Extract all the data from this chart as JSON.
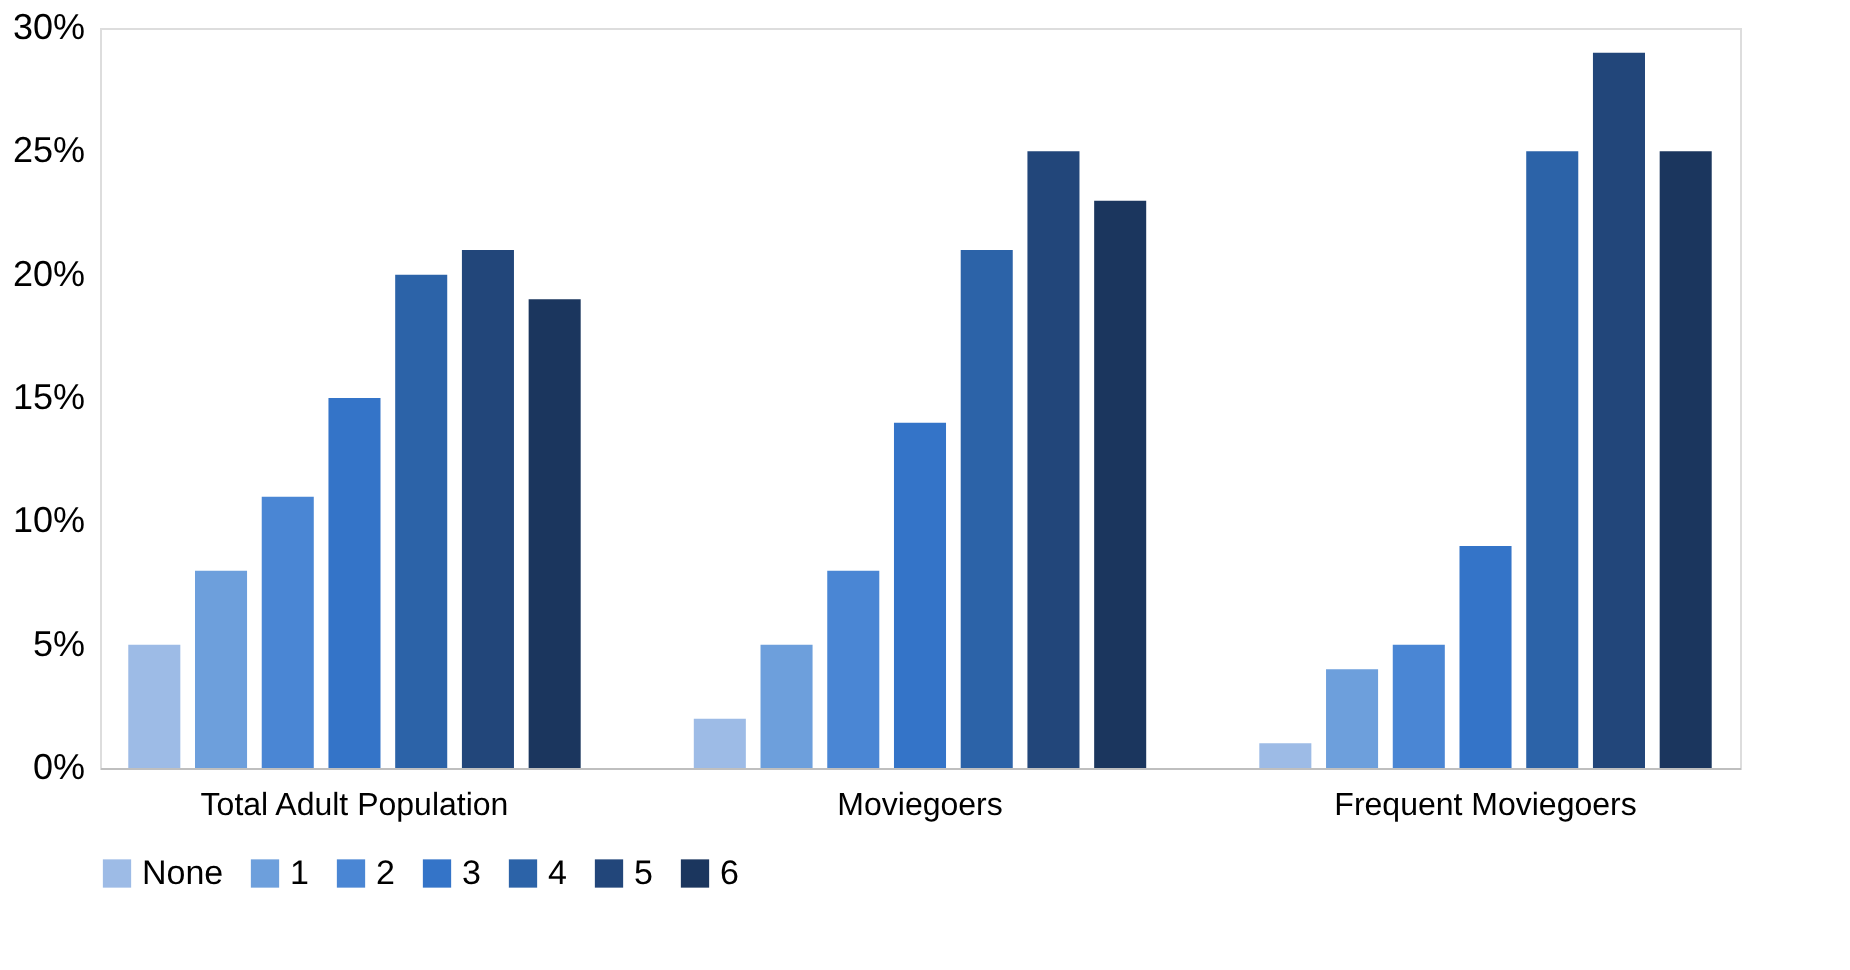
{
  "chart_data": {
    "type": "bar",
    "categories": [
      "Total Adult Population",
      "Moviegoers",
      "Frequent Moviegoers"
    ],
    "series": [
      {
        "name": "None",
        "color": "#9dbbe6",
        "values": [
          5,
          2,
          1
        ]
      },
      {
        "name": "1",
        "color": "#6d9fdc",
        "values": [
          8,
          5,
          4
        ]
      },
      {
        "name": "2",
        "color": "#4a86d4",
        "values": [
          11,
          8,
          5
        ]
      },
      {
        "name": "3",
        "color": "#3474c8",
        "values": [
          15,
          14,
          9
        ]
      },
      {
        "name": "4",
        "color": "#2c63a8",
        "values": [
          20,
          21,
          25
        ]
      },
      {
        "name": "5",
        "color": "#22467a",
        "values": [
          21,
          25,
          29
        ]
      },
      {
        "name": "6",
        "color": "#1b365e",
        "values": [
          19,
          23,
          25
        ]
      }
    ],
    "ylim": [
      0,
      30
    ],
    "yticks": [
      {
        "value": 0,
        "label": "0%"
      },
      {
        "value": 5,
        "label": "5%"
      },
      {
        "value": 10,
        "label": "10%"
      },
      {
        "value": 15,
        "label": "15%"
      },
      {
        "value": 20,
        "label": "20%"
      },
      {
        "value": 25,
        "label": "25%"
      },
      {
        "value": 30,
        "label": "30%"
      }
    ],
    "grid": false,
    "legend": "bottom"
  }
}
